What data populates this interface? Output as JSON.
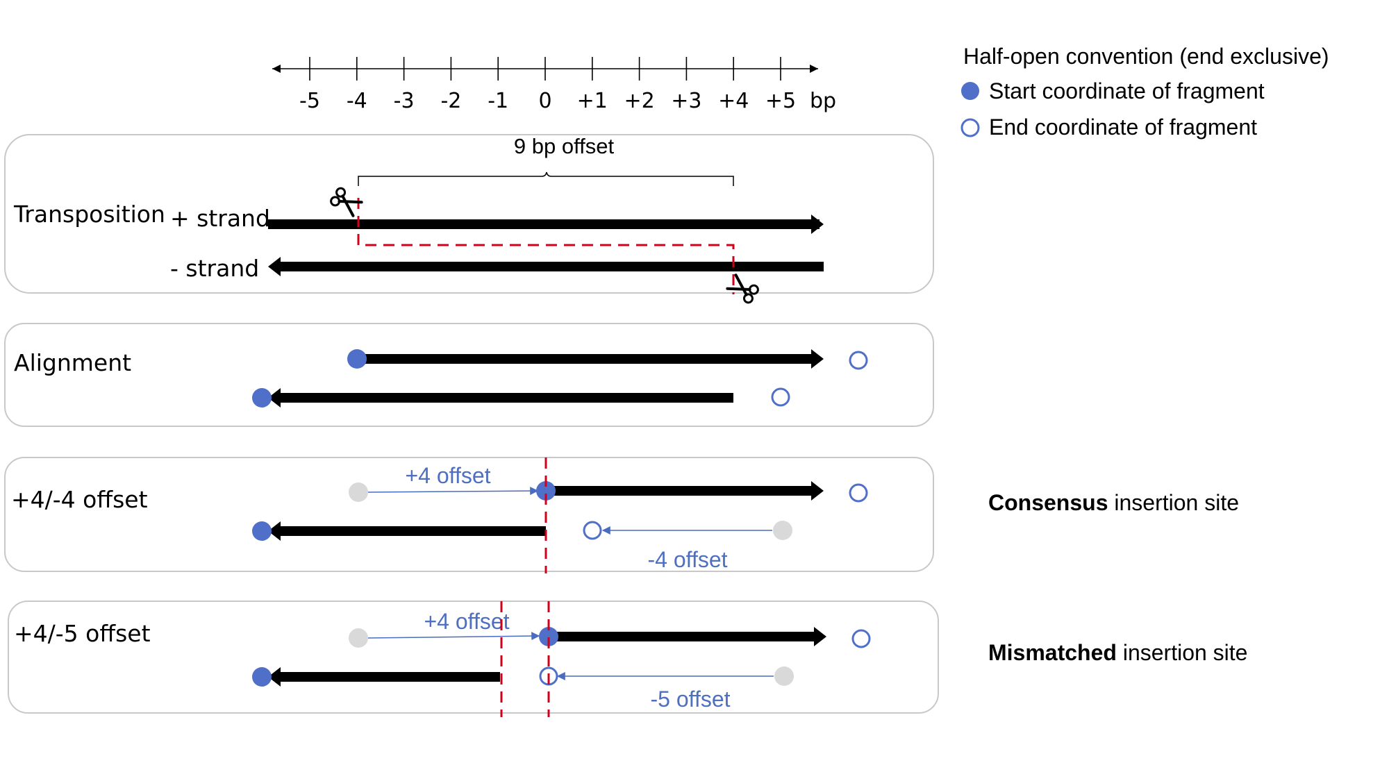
{
  "axis": {
    "ticks": [
      "-5",
      "-4",
      "-3",
      "-2",
      "-1",
      "0",
      "+1",
      "+2",
      "+3",
      "+4",
      "+5"
    ],
    "unit": "bp"
  },
  "legend": {
    "title": "Half-open convention (end exclusive)",
    "start_label": "Start coordinate of fragment",
    "end_label": "End coordinate of fragment",
    "start_color": "#4f6fc8",
    "end_color": "#4f6fc8"
  },
  "panels": {
    "transposition": {
      "title": "Transposition",
      "plus_strand": "+ strand",
      "minus_strand": "- strand",
      "offset_label": "9 bp offset",
      "icon": "scissors-icon"
    },
    "alignment": {
      "title": "Alignment"
    },
    "offset_44": {
      "title": "+4/-4 offset",
      "plus_offset": "+4 offset",
      "minus_offset": "-4 offset"
    },
    "offset_45": {
      "title": "+4/-5 offset",
      "plus_offset": "+4 offset",
      "minus_offset": "-5 offset"
    }
  },
  "sites": {
    "consensus_bold": "Consensus",
    "consensus_rest": " insertion site",
    "mismatched_bold": "Mismatched",
    "mismatched_rest": " insertion site"
  },
  "colors": {
    "marker_blue": "#4f6fc8",
    "ghost_gray": "#d9d9d9",
    "cut_red": "#d0021b"
  }
}
